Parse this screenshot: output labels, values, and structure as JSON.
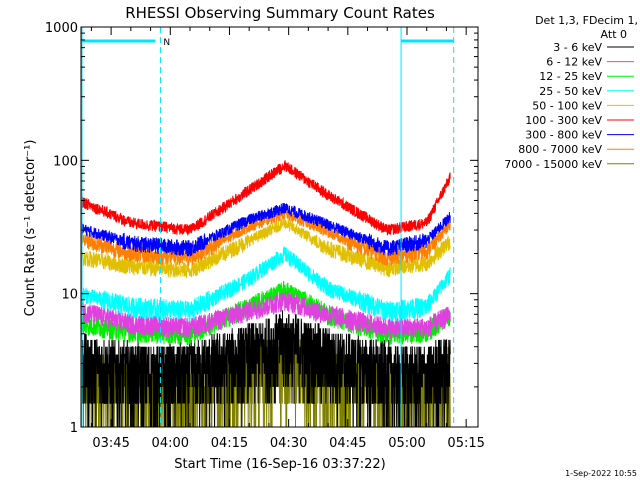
{
  "chart_data": {
    "type": "line",
    "title": "RHESSI Observing Summary Count Rates",
    "xlabel": "Start Time (16-Sep-16 03:37:22)",
    "ylabel": "Count Rate (s⁻¹ detector⁻¹)",
    "yscale": "log",
    "ylim": [
      1,
      1000
    ],
    "xlim_minutes": [
      "03:37:22",
      "05:18:00"
    ],
    "x_tick_labels": [
      "03:45",
      "04:00",
      "04:15",
      "04:30",
      "04:45",
      "05:00",
      "05:15"
    ],
    "y_tick_labels": [
      "1",
      "10",
      "100",
      "1000"
    ],
    "legend_header": [
      "Det 1,3, FDecim 1,",
      "Att 0"
    ],
    "legend_position": "right",
    "timestamp": "1-Sep-2022 10:55",
    "night_flag_label": "N",
    "series": [
      {
        "name": "3 - 6 keV",
        "color": "#000000",
        "points": [
          [
            "03:37",
            3.0
          ],
          [
            "03:50",
            2.6
          ],
          [
            "04:05",
            2.6
          ],
          [
            "04:20",
            3.6
          ],
          [
            "04:29",
            4.5
          ],
          [
            "04:40",
            3.4
          ],
          [
            "04:55",
            2.6
          ],
          [
            "05:05",
            2.5
          ],
          [
            "05:11",
            3.0
          ]
        ]
      },
      {
        "name": "6 - 12 keV",
        "color": "#e040e0",
        "points": [
          [
            "03:37",
            7.5
          ],
          [
            "03:50",
            6.0
          ],
          [
            "04:05",
            5.6
          ],
          [
            "04:20",
            7.5
          ],
          [
            "04:29",
            9.0
          ],
          [
            "04:40",
            7.0
          ],
          [
            "04:55",
            5.6
          ],
          [
            "05:05",
            5.6
          ],
          [
            "05:11",
            7.0
          ]
        ]
      },
      {
        "name": "12 - 25 keV",
        "color": "#00ee00",
        "points": [
          [
            "03:37",
            6.0
          ],
          [
            "03:50",
            5.2
          ],
          [
            "04:05",
            5.0
          ],
          [
            "04:20",
            8.0
          ],
          [
            "04:29",
            11.0
          ],
          [
            "04:40",
            7.0
          ],
          [
            "04:55",
            5.0
          ],
          [
            "05:05",
            5.2
          ],
          [
            "05:11",
            7.0
          ]
        ]
      },
      {
        "name": "25 - 50 keV",
        "color": "#00ffff",
        "points": [
          [
            "03:37",
            10.0
          ],
          [
            "03:50",
            8.0
          ],
          [
            "04:05",
            7.5
          ],
          [
            "04:20",
            13.0
          ],
          [
            "04:29",
            20.0
          ],
          [
            "04:40",
            11.0
          ],
          [
            "04:55",
            7.5
          ],
          [
            "05:05",
            8.0
          ],
          [
            "05:11",
            14.0
          ]
        ]
      },
      {
        "name": "50 - 100 keV",
        "color": "#e0c000",
        "points": [
          [
            "03:37",
            19.0
          ],
          [
            "03:50",
            16.0
          ],
          [
            "04:05",
            15.0
          ],
          [
            "04:20",
            25.0
          ],
          [
            "04:29",
            34.0
          ],
          [
            "04:40",
            22.0
          ],
          [
            "04:55",
            15.5
          ],
          [
            "05:05",
            17.0
          ],
          [
            "05:11",
            25.0
          ]
        ]
      },
      {
        "name": "100 - 300 keV",
        "color": "#ff0000",
        "points": [
          [
            "03:37",
            50.0
          ],
          [
            "03:50",
            34.0
          ],
          [
            "04:05",
            30.0
          ],
          [
            "04:20",
            60.0
          ],
          [
            "04:29",
            92.0
          ],
          [
            "04:40",
            55.0
          ],
          [
            "04:55",
            30.0
          ],
          [
            "05:05",
            34.0
          ],
          [
            "05:11",
            75.0
          ]
        ]
      },
      {
        "name": "300 - 800 keV",
        "color": "#0000ff",
        "points": [
          [
            "03:37",
            31.0
          ],
          [
            "03:50",
            24.0
          ],
          [
            "04:05",
            22.0
          ],
          [
            "04:20",
            36.0
          ],
          [
            "04:29",
            44.0
          ],
          [
            "04:40",
            33.0
          ],
          [
            "04:55",
            22.0
          ],
          [
            "05:05",
            25.0
          ],
          [
            "05:11",
            38.0
          ]
        ]
      },
      {
        "name": "800 - 7000 keV",
        "color": "#ff8000",
        "points": [
          [
            "03:37",
            26.0
          ],
          [
            "03:50",
            20.0
          ],
          [
            "04:05",
            18.5
          ],
          [
            "04:20",
            32.0
          ],
          [
            "04:29",
            40.0
          ],
          [
            "04:40",
            29.0
          ],
          [
            "04:55",
            18.5
          ],
          [
            "05:05",
            21.0
          ],
          [
            "05:11",
            33.0
          ]
        ]
      },
      {
        "name": "7000 - 15000 keV",
        "color": "#808000",
        "points": [
          [
            "03:37",
            2.2
          ],
          [
            "03:50",
            1.8
          ],
          [
            "04:05",
            1.7
          ],
          [
            "04:20",
            2.5
          ],
          [
            "04:29",
            3.2
          ],
          [
            "04:40",
            2.4
          ],
          [
            "04:55",
            1.7
          ],
          [
            "05:05",
            1.8
          ],
          [
            "05:11",
            2.4
          ]
        ]
      }
    ]
  }
}
